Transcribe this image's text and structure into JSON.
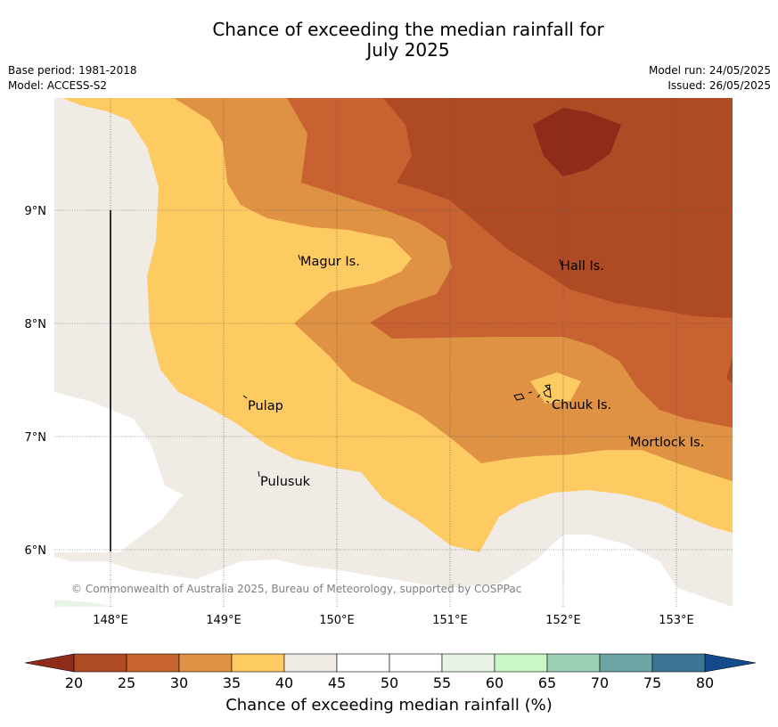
{
  "title": {
    "line1": "Chance of exceeding the median rainfall for",
    "line2": "July 2025"
  },
  "meta_left": {
    "base_period": "Base period: 1981-2018",
    "model": "Model: ACCESS-S2"
  },
  "meta_right": {
    "model_run": "Model run: 24/05/2025",
    "issued": "Issued: 26/05/2025"
  },
  "map": {
    "lat_labels": [
      "9°N",
      "8°N",
      "7°N",
      "6°N"
    ],
    "lon_labels": [
      "148°E",
      "149°E",
      "150°E",
      "151°E",
      "152°E",
      "153°E"
    ],
    "places": [
      "Magur Is.",
      "Hall Is.",
      "Pulap",
      "Chuuk Is.",
      "Mortlock Is.",
      "Pulusuk"
    ],
    "credit": "© Commonwealth of Australia 2025, Bureau of Meteorology, supported by COSPPac"
  },
  "colorbar": {
    "label": "Chance of exceeding median rainfall (%)",
    "ticks": [
      "20",
      "25",
      "30",
      "35",
      "40",
      "45",
      "50",
      "55",
      "60",
      "65",
      "70",
      "75",
      "80"
    ],
    "colors": [
      "#ae4a24",
      "#c96231",
      "#df9243",
      "#feca62",
      "#f0ebe5",
      "#ffffff",
      "#ffffff",
      "#e8f4e6",
      "#c9f7c5",
      "#9bcfb6",
      "#6ca5a4",
      "#3c7594"
    ],
    "under_color": "#8f2b19",
    "over_color": "#124a8c"
  }
}
